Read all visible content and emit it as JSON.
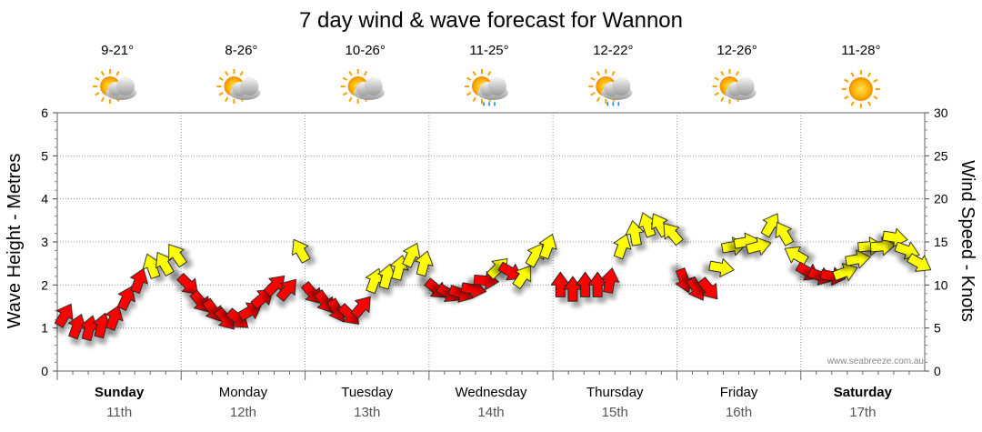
{
  "chart_data": {
    "type": "line",
    "title": "7 day wind & wave forecast for Wannon",
    "ylabel_left": "Wave Height - Metres",
    "ylabel_right": "Wind Speed - Knots",
    "ylim_left": [
      0,
      6
    ],
    "ylim_right": [
      0,
      30
    ],
    "yticks_left": [
      "0",
      "1",
      "2",
      "3",
      "4",
      "5",
      "6"
    ],
    "yticks_right": [
      "0",
      "5",
      "10",
      "15",
      "20",
      "25",
      "30"
    ],
    "grid": true,
    "credit": "www.seabreeze.com.au",
    "days": [
      {
        "name": "Sunday",
        "date": "11th",
        "temp": "9-21°",
        "icon": "sun-cloud-icon",
        "bold": true
      },
      {
        "name": "Monday",
        "date": "12th",
        "temp": "8-26°",
        "icon": "sun-cloud-icon",
        "bold": false
      },
      {
        "name": "Tuesday",
        "date": "13th",
        "temp": "10-26°",
        "icon": "sun-cloud-icon",
        "bold": false
      },
      {
        "name": "Wednesday",
        "date": "14th",
        "temp": "11-25°",
        "icon": "sun-cloud-rain-icon",
        "bold": false
      },
      {
        "name": "Thursday",
        "date": "15th",
        "temp": "12-22°",
        "icon": "sun-cloud-rain-icon",
        "bold": false
      },
      {
        "name": "Friday",
        "date": "16th",
        "temp": "12-26°",
        "icon": "sun-cloud-icon",
        "bold": false
      },
      {
        "name": "Saturday",
        "date": "17th",
        "temp": "11-28°",
        "icon": "sun-icon",
        "bold": true
      }
    ],
    "series": [
      {
        "name": "Wind Speed",
        "x": [
          0.0,
          0.1,
          0.2,
          0.3,
          0.4,
          0.5,
          0.6,
          0.7,
          0.8,
          0.9,
          1.0,
          1.1,
          1.2,
          1.3,
          1.4,
          1.5,
          1.6,
          1.7,
          1.8,
          1.9,
          2.0,
          2.1,
          2.2,
          2.3,
          2.4,
          2.5,
          2.6,
          2.7,
          2.8,
          2.9,
          3.0,
          3.1,
          3.2,
          3.3,
          3.4,
          3.5,
          3.6,
          3.7,
          3.8,
          3.9,
          4.0,
          4.1,
          4.2,
          4.3,
          4.4,
          4.5,
          4.6,
          4.7,
          4.8,
          4.9,
          5.0,
          5.1,
          5.2,
          5.3,
          5.4,
          5.5,
          5.6,
          5.7,
          5.8,
          5.9,
          6.0,
          6.1,
          6.2,
          6.3,
          6.4,
          6.5,
          6.6,
          6.7,
          6.8,
          6.9
        ],
        "y": [
          6.5,
          5.2,
          5.0,
          5.3,
          6.2,
          8.5,
          10.5,
          12.2,
          12.5,
          13.5,
          10.0,
          8.0,
          7.0,
          6.0,
          6.0,
          7.0,
          8.5,
          10.0,
          9.5,
          14.0,
          9.0,
          8.0,
          7.0,
          6.5,
          7.5,
          10.5,
          11.0,
          12.0,
          13.5,
          12.5,
          9.5,
          9.0,
          9.0,
          9.5,
          10.5,
          12.0,
          11.5,
          11.0,
          13.5,
          14.5,
          10.0,
          9.5,
          10.0,
          10.0,
          10.5,
          14.5,
          16.0,
          17.0,
          17.0,
          16.0,
          10.5,
          9.5,
          9.5,
          12.0,
          14.5,
          15.0,
          14.5,
          17.0,
          16.0,
          13.5,
          11.5,
          11.0,
          11.0,
          11.5,
          13.0,
          14.5,
          14.5,
          15.5,
          14.0,
          12.5
        ],
        "colors": [
          "#ff0000",
          "#ff0000",
          "#ff0000",
          "#ff0000",
          "#ff0000",
          "#ff0000",
          "#ff0000",
          "#ffff00",
          "#ffff00",
          "#ffff00",
          "#ff0000",
          "#ff0000",
          "#ff0000",
          "#ff0000",
          "#ff0000",
          "#ff0000",
          "#ff0000",
          "#ff0000",
          "#ff0000",
          "#ffff00",
          "#ff0000",
          "#ff0000",
          "#ff0000",
          "#ff0000",
          "#ff0000",
          "#ffff00",
          "#ffff00",
          "#ffff00",
          "#ffff00",
          "#ffff00",
          "#ff0000",
          "#ff0000",
          "#ff0000",
          "#ff0000",
          "#ff0000",
          "#ffff00",
          "#ff0000",
          "#ffff00",
          "#ffff00",
          "#ffff00",
          "#ff0000",
          "#ff0000",
          "#ff0000",
          "#ff0000",
          "#ff0000",
          "#ffff00",
          "#ffff00",
          "#ffff00",
          "#ffff00",
          "#ffff00",
          "#ff0000",
          "#ff0000",
          "#ff0000",
          "#ffff00",
          "#ffff00",
          "#ffff00",
          "#ffff00",
          "#ffff00",
          "#ffff00",
          "#ffff00",
          "#ff0000",
          "#ff0000",
          "#ff0000",
          "#ffff00",
          "#ffff00",
          "#ffff00",
          "#ffff00",
          "#ffff00",
          "#ffff00",
          "#ffff00"
        ],
        "direction_deg": [
          30,
          20,
          15,
          15,
          20,
          25,
          20,
          340,
          330,
          325,
          135,
          140,
          145,
          140,
          130,
          60,
          50,
          45,
          40,
          330,
          140,
          145,
          150,
          135,
          40,
          20,
          15,
          15,
          25,
          15,
          130,
          120,
          110,
          100,
          95,
          45,
          120,
          35,
          30,
          20,
          0,
          0,
          0,
          0,
          10,
          20,
          350,
          340,
          330,
          320,
          160,
          150,
          140,
          100,
          80,
          80,
          75,
          30,
          330,
          300,
          120,
          110,
          100,
          70,
          80,
          85,
          85,
          100,
          110,
          120
        ]
      }
    ]
  }
}
